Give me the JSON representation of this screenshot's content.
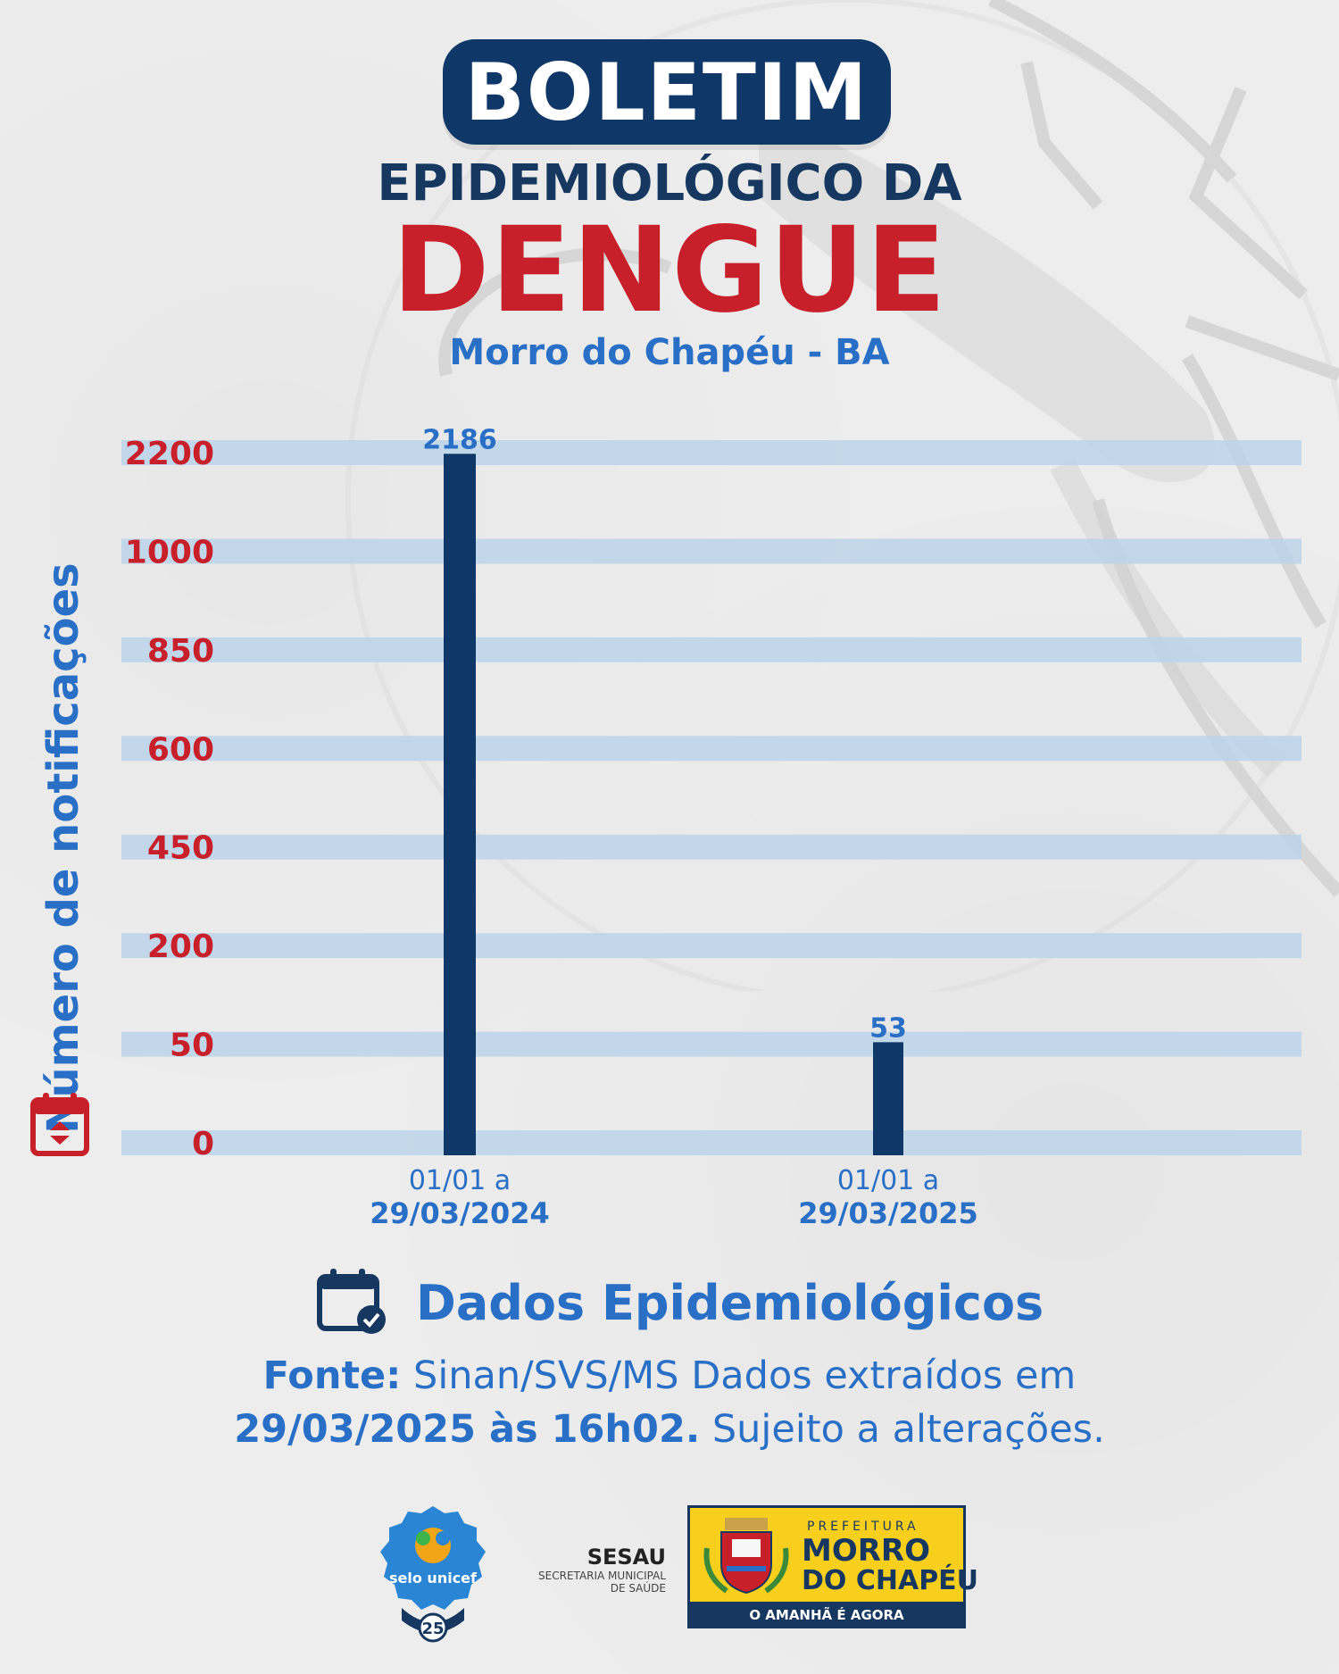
{
  "header": {
    "title": "BOLETIM",
    "subtitle_line1": "EPIDEMIOLÓGICO DA",
    "subtitle_line2": "DENGUE",
    "location": "Morro do Chapéu - BA"
  },
  "chart_data": {
    "type": "bar",
    "ylabel": "Número de notificações",
    "y_ticks": [
      "2200",
      "1000",
      "850",
      "600",
      "450",
      "200",
      "50",
      "0"
    ],
    "y_scale": "categorical-ticks",
    "categories": [
      {
        "line1": "01/01 a",
        "line2": "29/03/2024"
      },
      {
        "line1": "01/01 a",
        "line2": "29/03/2025"
      }
    ],
    "values": [
      2186,
      53
    ],
    "value_labels": [
      "2186",
      "53"
    ],
    "grid": true,
    "colors": {
      "bar": "#0f3767",
      "gridband": "#bcd3ea",
      "tick": "#c8202a",
      "label": "#2a6fc6"
    }
  },
  "footer": {
    "section_title": "Dados Epidemiológicos",
    "source_label": "Fonte:",
    "source_text": "Sinan/SVS/MS Dados extraídos em",
    "date_bold": "29/03/2025 às 16h02.",
    "disclaimer": "Sujeito a alterações."
  },
  "logos": {
    "unicef_text": "selo unicef",
    "unicef_badge": "25",
    "sesau_title": "SESAU",
    "sesau_sub1": "SECRETARIA MUNICIPAL",
    "sesau_sub2": "DE SAÚDE",
    "pref_line1": "PREFEITURA",
    "pref_line2": "MORRO",
    "pref_line3": "DO CHAPÉU",
    "pref_slogan": "O AMANHÃ É AGORA"
  }
}
